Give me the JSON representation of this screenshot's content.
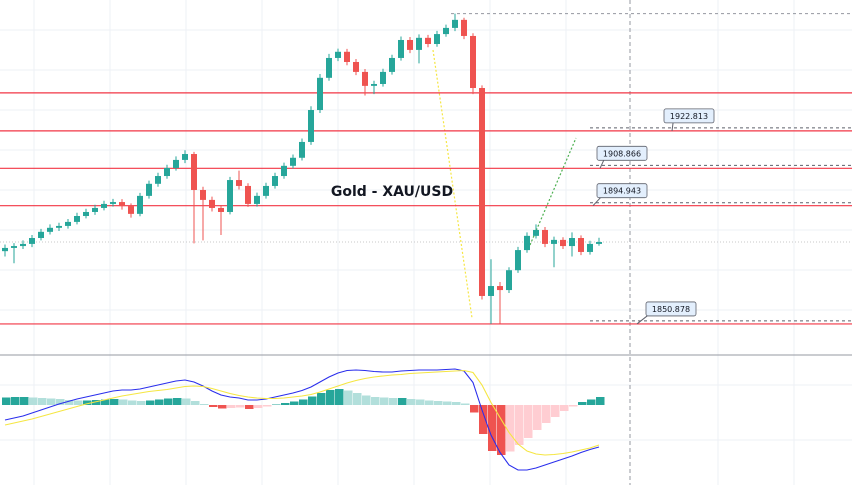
{
  "chart_data": [
    {
      "type": "candlestick",
      "title": "Gold - XAU/USD",
      "ylim": [
        1839.3,
        1971.6
      ],
      "up_color": "#26a69a",
      "down_color": "#ef5350",
      "levels": [
        1922.813,
        1908.866,
        1894.943,
        1850.878
      ],
      "unlabeled_levels": [
        1937.0
      ],
      "level_color": "#f23645",
      "ohlc": [
        [
          1878.0,
          1880.5,
          1876.0,
          1879.2
        ],
        [
          1879.2,
          1881.0,
          1873.5,
          1879.9
        ],
        [
          1879.9,
          1882.0,
          1878.8,
          1880.7
        ],
        [
          1880.7,
          1884.0,
          1879.5,
          1882.9
        ],
        [
          1882.9,
          1886.3,
          1882.0,
          1885.2
        ],
        [
          1885.2,
          1888.0,
          1884.2,
          1886.7
        ],
        [
          1886.7,
          1888.6,
          1885.5,
          1887.4
        ],
        [
          1887.4,
          1890.0,
          1886.4,
          1888.9
        ],
        [
          1888.9,
          1892.3,
          1888.0,
          1891.1
        ],
        [
          1891.1,
          1893.8,
          1890.2,
          1892.6
        ],
        [
          1892.6,
          1895.3,
          1891.5,
          1894.1
        ],
        [
          1894.1,
          1896.8,
          1893.2,
          1895.6
        ],
        [
          1895.6,
          1897.5,
          1894.6,
          1896.3
        ],
        [
          1896.3,
          1897.4,
          1893.5,
          1894.8
        ],
        [
          1894.8,
          1895.8,
          1890.5,
          1891.9
        ],
        [
          1891.9,
          1899.7,
          1891.0,
          1898.6
        ],
        [
          1898.6,
          1904.3,
          1897.6,
          1903.1
        ],
        [
          1903.1,
          1907.2,
          1902.0,
          1906.0
        ],
        [
          1906.0,
          1910.2,
          1905.0,
          1909.0
        ],
        [
          1909.0,
          1913.3,
          1908.0,
          1912.0
        ],
        [
          1912.0,
          1915.6,
          1910.8,
          1914.2
        ],
        [
          1914.2,
          1915.0,
          1880.9,
          1900.8
        ],
        [
          1900.8,
          1902.0,
          1882.0,
          1897.1
        ],
        [
          1897.1,
          1898.3,
          1892.8,
          1894.1
        ],
        [
          1894.1,
          1895.2,
          1884.0,
          1892.6
        ],
        [
          1892.6,
          1905.7,
          1891.7,
          1904.5
        ],
        [
          1904.5,
          1908.0,
          1901.0,
          1902.3
        ],
        [
          1902.3,
          1903.3,
          1894.5,
          1895.6
        ],
        [
          1895.6,
          1899.8,
          1894.6,
          1898.6
        ],
        [
          1898.6,
          1903.5,
          1897.6,
          1902.3
        ],
        [
          1902.3,
          1907.2,
          1901.3,
          1906.0
        ],
        [
          1906.0,
          1911.0,
          1905.0,
          1909.8
        ],
        [
          1909.8,
          1914.0,
          1908.8,
          1912.8
        ],
        [
          1912.8,
          1920.0,
          1911.8,
          1918.7
        ],
        [
          1918.7,
          1932.0,
          1917.6,
          1930.6
        ],
        [
          1930.6,
          1944.0,
          1929.5,
          1942.6
        ],
        [
          1942.6,
          1951.5,
          1941.5,
          1950.0
        ],
        [
          1950.0,
          1953.5,
          1948.8,
          1952.3
        ],
        [
          1952.3,
          1953.4,
          1947.3,
          1948.5
        ],
        [
          1948.5,
          1949.6,
          1943.6,
          1944.8
        ],
        [
          1944.8,
          1945.9,
          1936.0,
          1939.6
        ],
        [
          1939.6,
          1941.5,
          1936.5,
          1940.3
        ],
        [
          1940.3,
          1946.0,
          1939.3,
          1944.8
        ],
        [
          1944.8,
          1951.2,
          1943.8,
          1950.0
        ],
        [
          1950.0,
          1958.0,
          1949.0,
          1956.7
        ],
        [
          1956.7,
          1957.8,
          1951.8,
          1953.0
        ],
        [
          1953.0,
          1958.8,
          1948.0,
          1957.5
        ],
        [
          1957.5,
          1958.6,
          1954.0,
          1955.2
        ],
        [
          1955.2,
          1960.1,
          1954.2,
          1958.9
        ],
        [
          1958.9,
          1962.4,
          1957.9,
          1961.2
        ],
        [
          1961.2,
          1966.5,
          1960.0,
          1964.2
        ],
        [
          1964.2,
          1965.0,
          1957.0,
          1958.2
        ],
        [
          1958.2,
          1959.2,
          1936.5,
          1938.8
        ],
        [
          1938.8,
          1939.8,
          1860.0,
          1861.3
        ],
        [
          1861.3,
          1875.0,
          1850.9,
          1865.0
        ],
        [
          1865.0,
          1866.5,
          1851.0,
          1863.5
        ],
        [
          1863.5,
          1872.0,
          1862.4,
          1870.9
        ],
        [
          1870.9,
          1879.6,
          1869.9,
          1878.4
        ],
        [
          1878.4,
          1885.0,
          1877.4,
          1883.7
        ],
        [
          1883.7,
          1888.0,
          1882.7,
          1885.9
        ],
        [
          1885.9,
          1887.0,
          1879.5,
          1880.7
        ],
        [
          1880.7,
          1883.4,
          1872.0,
          1882.2
        ],
        [
          1882.2,
          1883.2,
          1878.8,
          1879.9
        ],
        [
          1879.9,
          1885.0,
          1876.0,
          1882.9
        ],
        [
          1882.9,
          1883.9,
          1876.5,
          1877.7
        ],
        [
          1877.7,
          1881.9,
          1876.7,
          1880.7
        ],
        [
          1880.7,
          1883.0,
          1880.0,
          1881.4
        ]
      ]
    },
    {
      "type": "macd",
      "ylim": [
        -16,
        10
      ],
      "histogram_colors": [
        "#26a69a",
        "#b2dfdb",
        "#ef5350",
        "#ffcdd2"
      ],
      "histogram": [
        1.5,
        1.6,
        1.6,
        1.5,
        1.4,
        1.3,
        1.2,
        1.0,
        0.9,
        0.9,
        1.0,
        1.1,
        1.2,
        1.1,
        0.9,
        0.8,
        0.9,
        1.1,
        1.3,
        1.4,
        1.3,
        0.8,
        0.2,
        -0.4,
        -0.7,
        -0.6,
        -0.5,
        -0.8,
        -0.6,
        -0.3,
        0.1,
        0.4,
        0.7,
        1.1,
        1.7,
        2.4,
        3.0,
        3.2,
        2.9,
        2.4,
        1.9,
        1.6,
        1.5,
        1.4,
        1.4,
        1.2,
        1.1,
        0.9,
        0.8,
        0.7,
        0.6,
        0.3,
        -1.5,
        -5.8,
        -9.2,
        -10.0,
        -9.3,
        -8.0,
        -6.6,
        -5.0,
        -3.6,
        -2.4,
        -1.2,
        -0.3,
        0.6,
        1.1,
        1.6
      ],
      "series": [
        {
          "color": "#2a2eec",
          "values": [
            -3.0,
            -2.6,
            -2.2,
            -1.6,
            -1.0,
            -0.4,
            0.2,
            0.7,
            1.2,
            1.6,
            2.0,
            2.4,
            2.8,
            3.0,
            3.0,
            3.2,
            3.6,
            4.0,
            4.4,
            4.8,
            5.0,
            4.6,
            3.8,
            2.8,
            2.0,
            1.6,
            1.4,
            1.0,
            1.0,
            1.2,
            1.6,
            2.0,
            2.4,
            2.9,
            3.6,
            4.6,
            5.6,
            6.4,
            6.9,
            7.0,
            6.9,
            6.7,
            6.6,
            6.6,
            6.8,
            6.9,
            7.0,
            7.0,
            7.0,
            7.1,
            7.2,
            6.8,
            4.5,
            -1.0,
            -6.0,
            -9.5,
            -12.0,
            -13.0,
            -13.0,
            -12.6,
            -12.0,
            -11.4,
            -10.8,
            -10.2,
            -9.5,
            -8.9,
            -8.4
          ]
        },
        {
          "color": "#f5e642",
          "values": [
            -4.0,
            -3.6,
            -3.2,
            -2.8,
            -2.3,
            -1.8,
            -1.3,
            -0.8,
            -0.3,
            0.2,
            0.6,
            1.0,
            1.4,
            1.8,
            2.1,
            2.4,
            2.7,
            2.9,
            3.1,
            3.4,
            3.7,
            3.8,
            3.7,
            3.3,
            2.8,
            2.3,
            1.9,
            1.6,
            1.4,
            1.3,
            1.3,
            1.4,
            1.6,
            1.8,
            2.1,
            2.6,
            3.2,
            3.8,
            4.4,
            4.9,
            5.3,
            5.6,
            5.8,
            6.0,
            6.1,
            6.3,
            6.4,
            6.5,
            6.6,
            6.7,
            6.8,
            6.9,
            6.5,
            4.0,
            0.5,
            -2.5,
            -5.5,
            -7.8,
            -9.2,
            -9.8,
            -10.0,
            -9.9,
            -9.7,
            -9.4,
            -9.0,
            -8.6,
            -8.0
          ]
        }
      ]
    }
  ]
}
